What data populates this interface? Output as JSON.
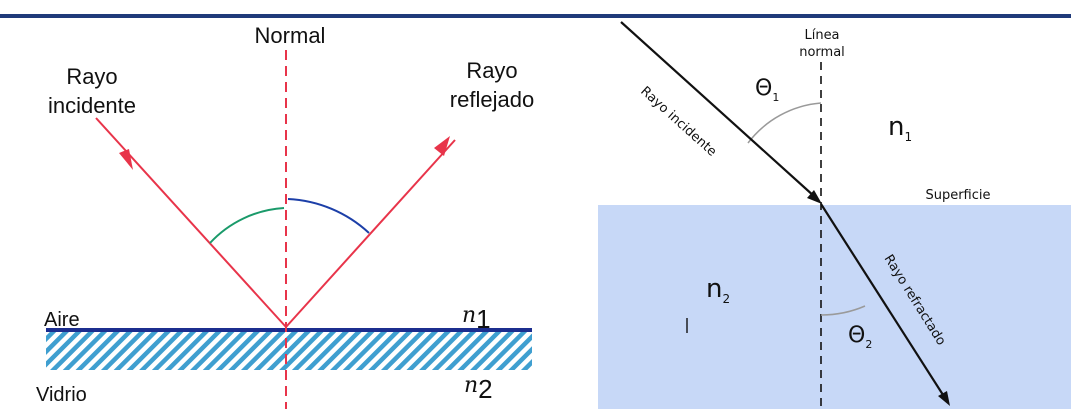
{
  "colors": {
    "top_bar": "#1f3a7a",
    "ray_red": "#e8344a",
    "surface_blue": "#1c2e8f",
    "hatch": "#3f9fd0",
    "arc_green": "#1a9a6a",
    "arc_blue": "#1c3fa8",
    "medium_blue": "#c7d8f7",
    "ink": "#111111",
    "arc_gray": "#9a9a9a"
  },
  "reflection": {
    "normal_label": "Normal",
    "incident_label_line1": "Rayo",
    "incident_label_line2": "incidente",
    "reflected_label_line1": "Rayo",
    "reflected_label_line2": "reflejado",
    "medium_top": "Aire",
    "medium_bottom": "Vidrio",
    "n1_base": "n",
    "n1_sub": "1",
    "n2_base": "n",
    "n2_sub": "2"
  },
  "refraction": {
    "normal_label_line1": "Línea",
    "normal_label_line2": "normal",
    "incident_ray_label": "Rayo incidente",
    "refracted_ray_label": "Rayo refractado",
    "surface_label": "Superficie",
    "theta1_base": "Θ",
    "theta1_sub": "1",
    "theta2_base": "Θ",
    "theta2_sub": "2",
    "n1_base": "n",
    "n1_sub": "1",
    "n2_base": "n",
    "n2_sub": "2"
  }
}
